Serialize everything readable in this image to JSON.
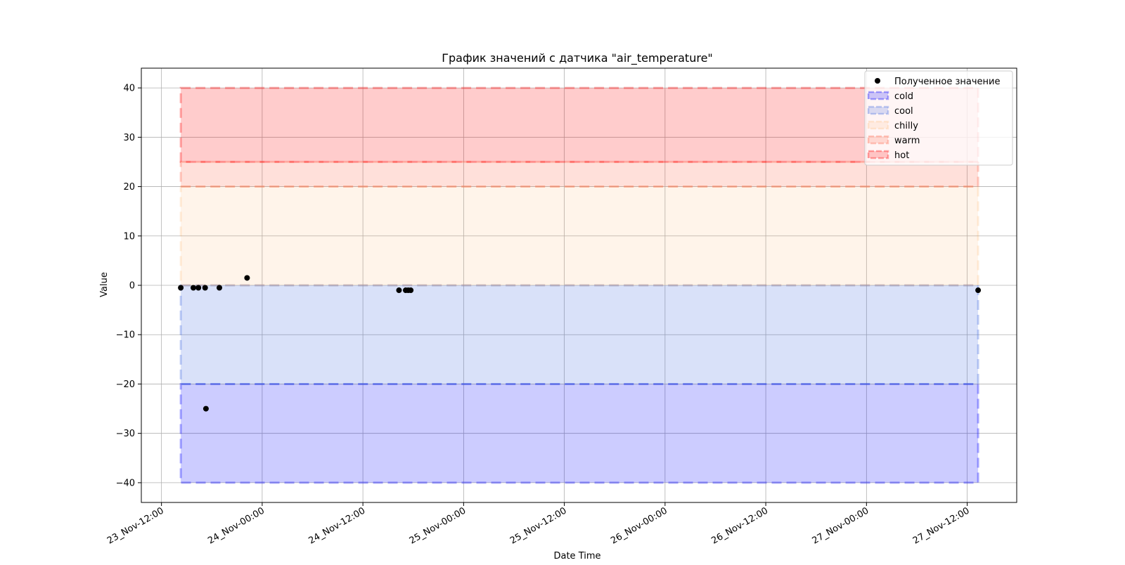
{
  "chart_data": {
    "type": "scatter",
    "title": "График значений с датчика \"air_temperature\"",
    "xlabel": "Date Time",
    "ylabel": "Value",
    "x_tick_labels": [
      "23_Nov-12:00",
      "24_Nov-00:00",
      "24_Nov-12:00",
      "25_Nov-00:00",
      "25_Nov-12:00",
      "26_Nov-00:00",
      "26_Nov-12:00",
      "27_Nov-00:00",
      "27_Nov-12:00"
    ],
    "x_tick_hours": [
      0,
      12,
      24,
      36,
      48,
      60,
      72,
      84,
      96
    ],
    "xlim_hours": [
      -2.4,
      101.9
    ],
    "ylim": [
      -44,
      44
    ],
    "y_ticks": [
      -40,
      -30,
      -20,
      -10,
      0,
      10,
      20,
      30,
      40
    ],
    "grid": true,
    "legend_position": "top-right",
    "series": [
      {
        "name": "Полученное значение",
        "color": "#000000",
        "points": [
          {
            "h": 2.3,
            "v": -0.5
          },
          {
            "h": 3.8,
            "v": -0.5
          },
          {
            "h": 4.4,
            "v": -0.5
          },
          {
            "h": 5.2,
            "v": -0.5
          },
          {
            "h": 5.3,
            "v": -25
          },
          {
            "h": 6.9,
            "v": -0.5
          },
          {
            "h": 10.2,
            "v": 1.5
          },
          {
            "h": 28.3,
            "v": -1
          },
          {
            "h": 29.1,
            "v": -1
          },
          {
            "h": 29.4,
            "v": -1
          },
          {
            "h": 29.7,
            "v": -1
          },
          {
            "h": 97.3,
            "v": -1
          }
        ]
      }
    ],
    "zones": [
      {
        "name": "cold",
        "from": -40,
        "to": -20,
        "fill": "#0000ff",
        "alpha": 0.2,
        "x_start_hours": 2.3,
        "x_end_hours": 97.3
      },
      {
        "name": "cool",
        "from": -20,
        "to": 0,
        "fill": "#4169e1",
        "alpha": 0.2,
        "x_start_hours": 2.3,
        "x_end_hours": 97.3
      },
      {
        "name": "chilly",
        "from": 0,
        "to": 20,
        "fill": "#ffa54f",
        "alpha": 0.12,
        "x_start_hours": 2.3,
        "x_end_hours": 97.3
      },
      {
        "name": "warm",
        "from": 20,
        "to": 25,
        "fill": "#ff6347",
        "alpha": 0.2,
        "x_start_hours": 2.3,
        "x_end_hours": 97.3
      },
      {
        "name": "hot",
        "from": 25,
        "to": 40,
        "fill": "#ff0000",
        "alpha": 0.2,
        "x_start_hours": 2.3,
        "x_end_hours": 97.3
      }
    ]
  }
}
